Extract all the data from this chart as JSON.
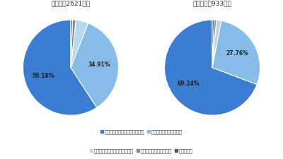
{
  "chart1_title": "全回答（2621件）",
  "chart2_title": "福祉施設（933件）",
  "chart1_values": [
    59.18,
    34.91,
    4.21,
    1.1,
    0.6
  ],
  "chart2_values": [
    69.24,
    27.76,
    1.61,
    0.75,
    0.64
  ],
  "colors": [
    "#3a7dd1",
    "#88bce8",
    "#b8d8f0",
    "#888888",
    "#555555"
  ],
  "labels": [
    "経営の大きな負担になっている",
    "経営の負担になっている",
    "それほど負担にはなっていない",
    "全く負担になっていない",
    "分からない"
  ],
  "bg_color": "#ffffff",
  "text_color": "#333333",
  "startangle": 90,
  "chart1_pct_labels": [
    "59.18%",
    "34.91%"
  ],
  "chart2_pct_labels": [
    "69.24%",
    "27.76%"
  ]
}
